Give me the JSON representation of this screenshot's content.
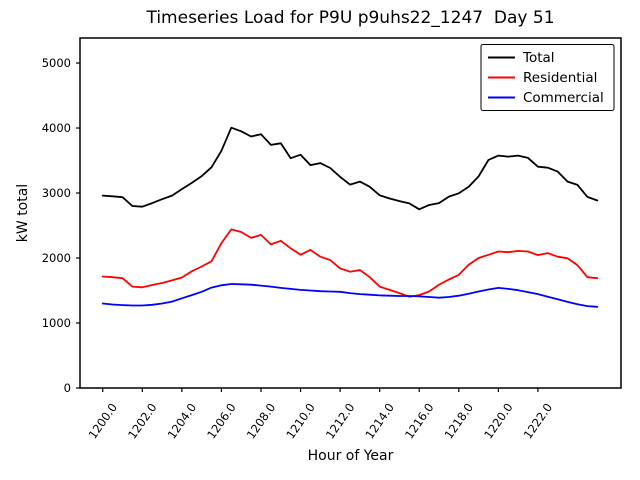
{
  "chart_data": {
    "type": "line",
    "title": "Timeseries Load for P9U p9uhs22_1247  Day 51",
    "xlabel": "Hour of Year",
    "ylabel": "kW total",
    "grid": false,
    "legend_position": "upper right",
    "legend_border_color": "#000000",
    "xlim": [
      1198.85,
      1226.2
    ],
    "ylim": [
      0,
      5385
    ],
    "xticks": [
      1200,
      1202,
      1204,
      1206,
      1208,
      1210,
      1212,
      1214,
      1216,
      1218,
      1220,
      1222
    ],
    "xtick_labels": [
      "1200.0",
      "1202.0",
      "1204.0",
      "1206.0",
      "1208.0",
      "1210.0",
      "1212.0",
      "1214.0",
      "1216.0",
      "1218.0",
      "1220.0",
      "1222.0"
    ],
    "xtick_rotation": -55,
    "yticks": [
      0,
      1000,
      2000,
      3000,
      4000,
      5000
    ],
    "ytick_labels": [
      "0",
      "1000",
      "2000",
      "3000",
      "4000",
      "5000"
    ],
    "x": [
      1200.0,
      1200.5,
      1201.0,
      1201.5,
      1202.0,
      1202.5,
      1203.0,
      1203.5,
      1204.0,
      1204.5,
      1205.0,
      1205.5,
      1206.0,
      1206.5,
      1207.0,
      1207.5,
      1208.0,
      1208.5,
      1209.0,
      1209.5,
      1210.0,
      1210.5,
      1211.0,
      1211.5,
      1212.0,
      1212.5,
      1213.0,
      1213.5,
      1214.0,
      1214.5,
      1215.0,
      1215.5,
      1216.0,
      1216.5,
      1217.0,
      1217.5,
      1218.0,
      1218.5,
      1219.0,
      1219.5,
      1220.0,
      1220.5,
      1221.0,
      1221.5,
      1222.0,
      1222.5,
      1223.0,
      1223.5,
      1224.0,
      1224.5,
      1225.0
    ],
    "series": [
      {
        "name": "Total",
        "color": "#000000",
        "values": [
          2960,
          2950,
          2935,
          2800,
          2790,
          2845,
          2905,
          2960,
          3060,
          3155,
          3260,
          3395,
          3650,
          4005,
          3950,
          3870,
          3905,
          3740,
          3765,
          3535,
          3590,
          3430,
          3460,
          3385,
          3250,
          3130,
          3175,
          3095,
          2965,
          2915,
          2875,
          2840,
          2750,
          2815,
          2845,
          2945,
          2995,
          3095,
          3255,
          3510,
          3575,
          3560,
          3575,
          3540,
          3405,
          3390,
          3330,
          3175,
          3125,
          2940,
          2885
        ]
      },
      {
        "name": "Residential",
        "color": "#ff0000",
        "values": [
          1715,
          1705,
          1690,
          1560,
          1550,
          1585,
          1615,
          1655,
          1700,
          1795,
          1870,
          1950,
          2230,
          2440,
          2400,
          2310,
          2355,
          2210,
          2265,
          2150,
          2050,
          2125,
          2020,
          1970,
          1840,
          1790,
          1815,
          1705,
          1560,
          1510,
          1460,
          1405,
          1430,
          1485,
          1590,
          1670,
          1740,
          1895,
          2000,
          2050,
          2100,
          2090,
          2110,
          2100,
          2045,
          2075,
          2020,
          1995,
          1890,
          1705,
          1690
        ]
      },
      {
        "name": "Commercial",
        "color": "#0000ff",
        "values": [
          1300,
          1285,
          1275,
          1270,
          1270,
          1280,
          1300,
          1330,
          1380,
          1430,
          1480,
          1545,
          1580,
          1600,
          1595,
          1590,
          1575,
          1560,
          1540,
          1525,
          1510,
          1500,
          1490,
          1485,
          1480,
          1460,
          1445,
          1435,
          1425,
          1420,
          1415,
          1415,
          1410,
          1400,
          1390,
          1400,
          1420,
          1450,
          1485,
          1515,
          1540,
          1525,
          1505,
          1475,
          1445,
          1405,
          1365,
          1325,
          1290,
          1260,
          1250
        ]
      }
    ]
  }
}
